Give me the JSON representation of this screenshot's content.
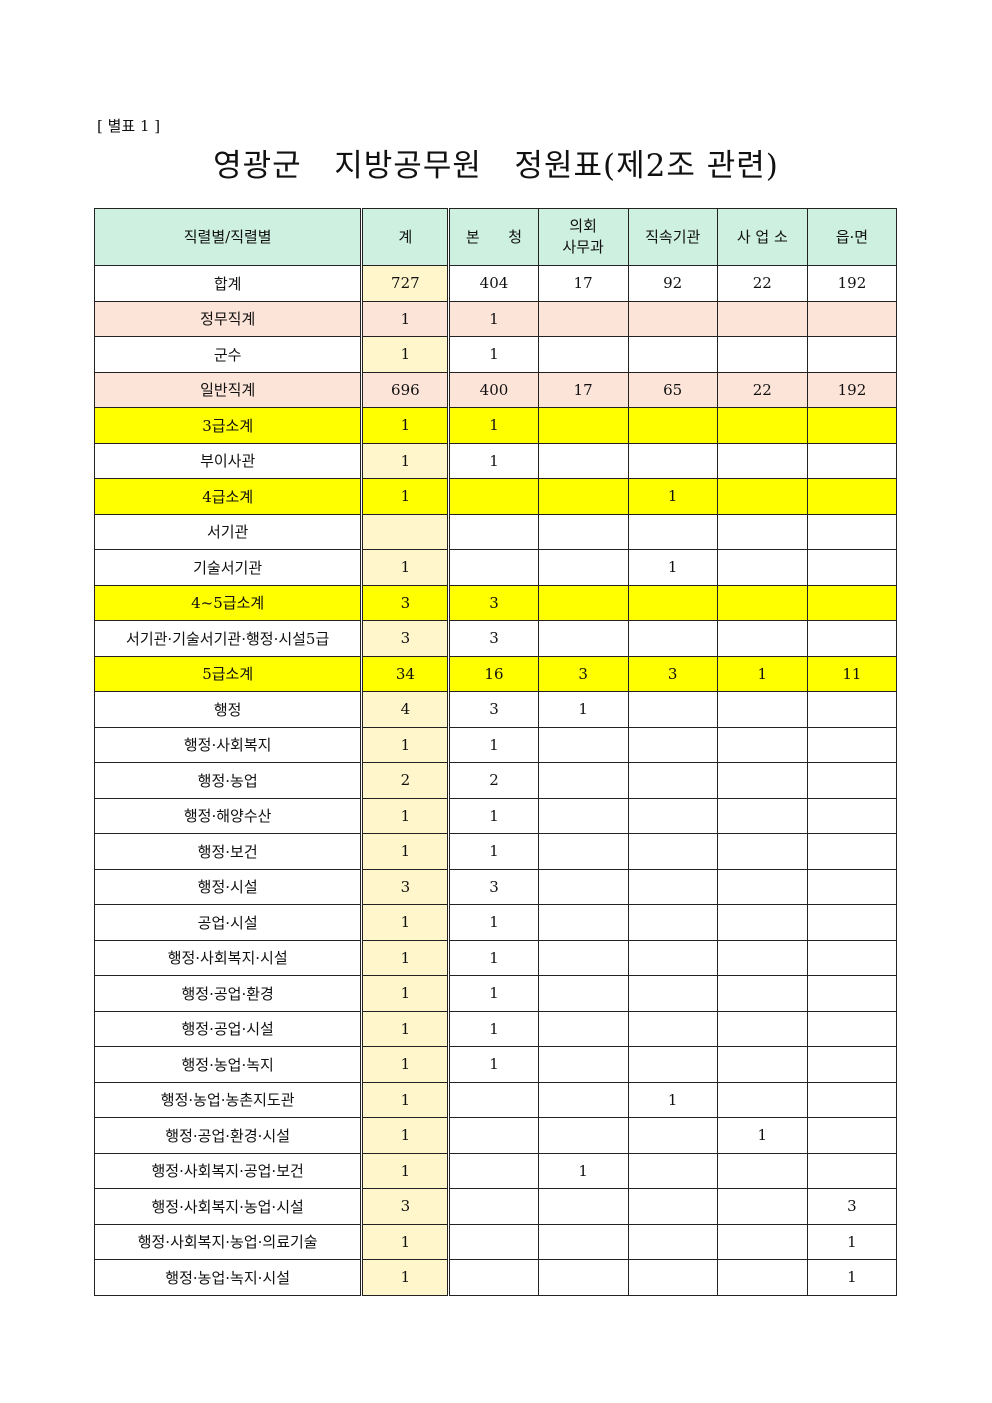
{
  "label": "[ 별표 1 ]",
  "title": "영광군   지방공무원   정원표(제2조 관련)",
  "columns": [
    "직렬별/직렬별",
    "계",
    "본      청",
    "의회\n사무과",
    "직속기관",
    "사 업 소",
    "읍·면"
  ],
  "rows": [
    {
      "name": "합계",
      "style": "",
      "values": [
        "727",
        "404",
        "17",
        "92",
        "22",
        "192"
      ]
    },
    {
      "name": "정무직계",
      "style": "peach",
      "values": [
        "1",
        "1",
        "",
        "",
        "",
        ""
      ]
    },
    {
      "name": "군수",
      "style": "",
      "values": [
        "1",
        "1",
        "",
        "",
        "",
        ""
      ]
    },
    {
      "name": "일반직계",
      "style": "peach",
      "values": [
        "696",
        "400",
        "17",
        "65",
        "22",
        "192"
      ]
    },
    {
      "name": "3급소계",
      "style": "yellow",
      "values": [
        "1",
        "1",
        "",
        "",
        "",
        ""
      ]
    },
    {
      "name": "부이사관",
      "style": "",
      "values": [
        "1",
        "1",
        "",
        "",
        "",
        ""
      ]
    },
    {
      "name": "4급소계",
      "style": "yellow",
      "values": [
        "1",
        "",
        "",
        "1",
        "",
        ""
      ]
    },
    {
      "name": "서기관",
      "style": "",
      "values": [
        "",
        "",
        "",
        "",
        "",
        ""
      ]
    },
    {
      "name": "기술서기관",
      "style": "",
      "values": [
        "1",
        "",
        "",
        "1",
        "",
        ""
      ]
    },
    {
      "name": "4~5급소계",
      "style": "yellow",
      "values": [
        "3",
        "3",
        "",
        "",
        "",
        ""
      ]
    },
    {
      "name": "서기관·기술서기관·행정·시설5급",
      "style": "",
      "values": [
        "3",
        "3",
        "",
        "",
        "",
        ""
      ]
    },
    {
      "name": "5급소계",
      "style": "yellow",
      "values": [
        "34",
        "16",
        "3",
        "3",
        "1",
        "11"
      ]
    },
    {
      "name": "행정",
      "style": "",
      "values": [
        "4",
        "3",
        "1",
        "",
        "",
        ""
      ]
    },
    {
      "name": "행정·사회복지",
      "style": "",
      "values": [
        "1",
        "1",
        "",
        "",
        "",
        ""
      ]
    },
    {
      "name": "행정·농업",
      "style": "",
      "values": [
        "2",
        "2",
        "",
        "",
        "",
        ""
      ]
    },
    {
      "name": "행정·해양수산",
      "style": "",
      "values": [
        "1",
        "1",
        "",
        "",
        "",
        ""
      ]
    },
    {
      "name": "행정·보건",
      "style": "",
      "values": [
        "1",
        "1",
        "",
        "",
        "",
        ""
      ]
    },
    {
      "name": "행정·시설",
      "style": "",
      "values": [
        "3",
        "3",
        "",
        "",
        "",
        ""
      ]
    },
    {
      "name": "공업·시설",
      "style": "",
      "values": [
        "1",
        "1",
        "",
        "",
        "",
        ""
      ]
    },
    {
      "name": "행정·사회복지·시설",
      "style": "",
      "values": [
        "1",
        "1",
        "",
        "",
        "",
        ""
      ]
    },
    {
      "name": "행정·공업·환경",
      "style": "",
      "values": [
        "1",
        "1",
        "",
        "",
        "",
        ""
      ]
    },
    {
      "name": "행정·공업·시설",
      "style": "",
      "values": [
        "1",
        "1",
        "",
        "",
        "",
        ""
      ]
    },
    {
      "name": "행정·농업·녹지",
      "style": "",
      "values": [
        "1",
        "1",
        "",
        "",
        "",
        ""
      ]
    },
    {
      "name": "행정·농업·농촌지도관",
      "style": "",
      "values": [
        "1",
        "",
        "",
        "1",
        "",
        ""
      ]
    },
    {
      "name": "행정·공업·환경·시설",
      "style": "",
      "values": [
        "1",
        "",
        "",
        "",
        "1",
        ""
      ]
    },
    {
      "name": "행정·사회복지·공업·보건",
      "style": "",
      "values": [
        "1",
        "",
        "1",
        "",
        "",
        ""
      ]
    },
    {
      "name": "행정·사회복지·농업·시설",
      "style": "",
      "values": [
        "3",
        "",
        "",
        "",
        "",
        "3"
      ]
    },
    {
      "name": "행정·사회복지·농업·의료기술",
      "style": "",
      "values": [
        "1",
        "",
        "",
        "",
        "",
        "1"
      ]
    },
    {
      "name": "행정·농업·녹지·시설",
      "style": "",
      "values": [
        "1",
        "",
        "",
        "",
        "",
        "1"
      ]
    }
  ]
}
